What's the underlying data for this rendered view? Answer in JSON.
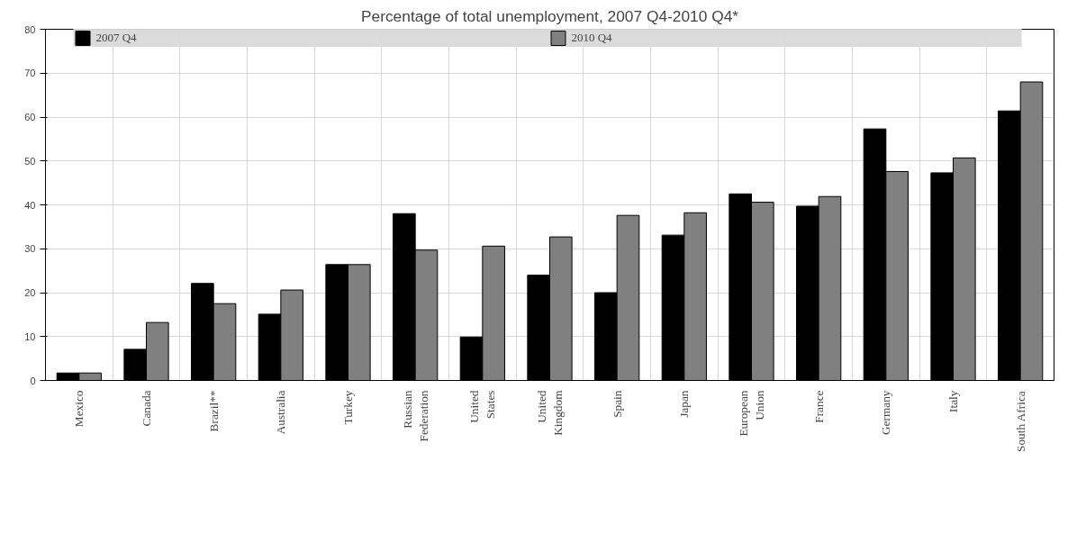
{
  "chart_data": {
    "type": "bar",
    "title": "Percentage of total unemployment, 2007 Q4-2010 Q4*",
    "categories": [
      "Mexico",
      "Canada",
      "Brazil**",
      "Australia",
      "Turkey",
      "Russian\nFederation",
      "United\nStates",
      "United\nKingdom",
      "Spain",
      "Japan",
      "European\nUnion",
      "France",
      "Germany",
      "Italy",
      "South Africa"
    ],
    "series": [
      {
        "name": "2007 Q4",
        "color": "#000000",
        "values": [
          1.7,
          7.1,
          22.1,
          15.1,
          26.4,
          38.0,
          9.9,
          24.0,
          20.0,
          33.1,
          42.5,
          39.7,
          57.3,
          47.3,
          61.4
        ]
      },
      {
        "name": "2010 Q4",
        "color": "#808080",
        "values": [
          1.7,
          13.2,
          17.5,
          20.6,
          26.4,
          29.7,
          30.6,
          32.7,
          37.6,
          38.2,
          40.6,
          41.9,
          47.6,
          50.7,
          68.0
        ]
      }
    ],
    "ylim": [
      0,
      80
    ],
    "yticks": [
      0,
      10,
      20,
      30,
      40,
      50,
      60,
      70,
      80
    ],
    "grid": true,
    "legend": "top"
  }
}
